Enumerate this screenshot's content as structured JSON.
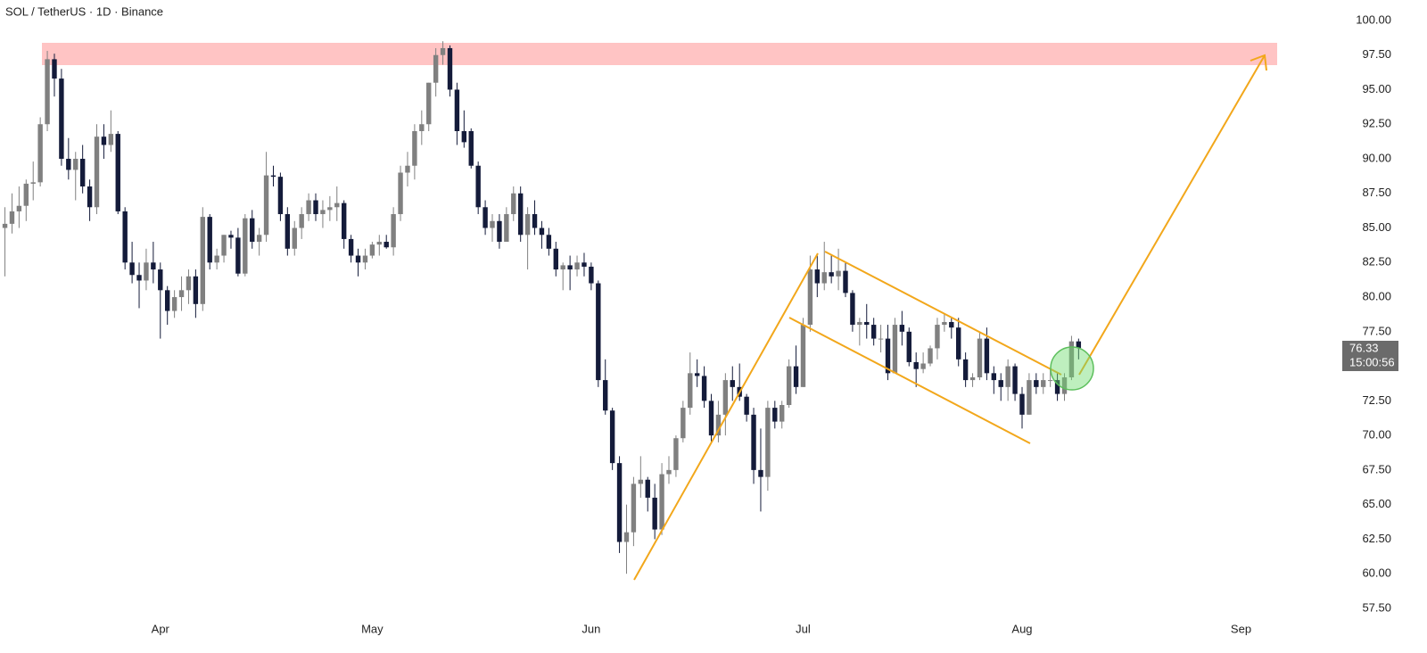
{
  "chart_data": {
    "type": "candlestick",
    "title": "SOL / TetherUS · 1D · Binance",
    "up_color": "#808080",
    "down_color": "#141b3a",
    "xlim": [
      -0.7,
      188.7
    ],
    "ylim": [
      56.98,
      101.48
    ],
    "xticks": [
      {
        "value": 22,
        "label": "Apr"
      },
      {
        "value": 52,
        "label": "May"
      },
      {
        "value": 83,
        "label": "Jun"
      },
      {
        "value": 113,
        "label": "Jul"
      },
      {
        "value": 144,
        "label": "Aug"
      },
      {
        "value": 175,
        "label": "Sep"
      }
    ],
    "yticks": [
      {
        "value": 57.5,
        "label": "57.50"
      },
      {
        "value": 60,
        "label": "60.00"
      },
      {
        "value": 62.5,
        "label": "62.50"
      },
      {
        "value": 65,
        "label": "65.00"
      },
      {
        "value": 67.5,
        "label": "67.50"
      },
      {
        "value": 70,
        "label": "70.00"
      },
      {
        "value": 72.5,
        "label": "72.50"
      },
      {
        "value": 75,
        "label": "75.00"
      },
      {
        "value": 77.5,
        "label": "77.50"
      },
      {
        "value": 80,
        "label": "80.00"
      },
      {
        "value": 82.5,
        "label": "82.50"
      },
      {
        "value": 85,
        "label": "85.00"
      },
      {
        "value": 87.5,
        "label": "87.50"
      },
      {
        "value": 90,
        "label": "90.00"
      },
      {
        "value": 92.5,
        "label": "92.50"
      },
      {
        "value": 95,
        "label": "95.00"
      },
      {
        "value": 97.5,
        "label": "97.50"
      },
      {
        "value": 100,
        "label": "100.00"
      }
    ],
    "countdown": "15:00:56",
    "open": [
      85.0,
      85.3,
      86.2,
      86.6,
      88.2,
      88.3,
      92.5,
      97.2,
      95.8,
      90.0,
      89.2,
      90.0,
      88.0,
      86.5,
      91.6,
      91.0,
      91.8,
      86.2,
      82.5,
      81.6,
      81.2,
      82.5,
      82.0,
      80.5,
      79.0,
      80.0,
      80.5,
      81.5,
      79.5,
      85.8,
      82.5,
      83.0,
      84.5,
      84.3,
      81.7,
      85.7,
      84.0,
      84.5,
      88.8,
      88.7,
      86.0,
      83.5,
      85.0,
      86.0,
      87.0,
      86.0,
      86.3,
      86.5,
      86.8,
      84.2,
      83.0,
      82.5,
      83.0,
      83.8,
      84.0,
      83.6,
      86.0,
      89.0,
      89.5,
      92.0,
      92.5,
      95.5,
      97.5,
      98.0,
      95.0,
      92.0,
      92.0,
      89.5,
      86.5,
      85.0,
      85.5,
      84.0,
      86.0,
      87.5,
      84.5,
      86.0,
      85.0,
      84.5,
      83.5,
      82.0,
      82.3,
      82.0,
      82.5,
      82.2,
      81.0,
      74.0,
      71.8,
      68.0,
      62.3,
      63.0,
      66.5,
      66.8,
      65.5,
      63.2,
      67.2,
      67.5,
      69.8,
      72.0,
      74.5,
      74.3,
      72.5,
      70.0,
      71.5,
      74.0,
      73.5,
      72.8,
      71.5,
      67.5,
      67.0,
      72.0,
      71.0,
      72.2,
      75.0,
      73.5,
      78.0,
      82.0,
      81.0,
      81.8,
      81.5,
      81.9,
      80.3,
      78.0,
      78.2,
      78.0,
      77.0,
      77.0,
      74.5,
      78.0,
      77.5,
      75.3,
      74.8,
      75.2,
      76.3,
      78.0,
      78.2,
      77.8,
      75.5,
      74.0,
      74.2,
      77.0,
      74.5,
      74.0,
      73.5,
      75.0,
      73.0,
      71.5,
      74.0,
      73.5,
      74.0,
      74.0,
      73.0,
      74.2,
      76.8
    ],
    "high": [
      86.5,
      87.5,
      88.0,
      88.5,
      89.8,
      93.0,
      97.8,
      97.6,
      96.5,
      91.5,
      90.5,
      91.0,
      88.5,
      92.5,
      92.5,
      93.5,
      92.0,
      86.5,
      84.0,
      82.5,
      83.5,
      84.0,
      82.5,
      80.8,
      80.5,
      81.5,
      82.0,
      82.0,
      86.5,
      86.0,
      83.5,
      84.5,
      84.8,
      85.0,
      86.0,
      86.3,
      85.0,
      90.5,
      89.5,
      89.0,
      86.5,
      85.5,
      86.5,
      87.5,
      87.5,
      87.0,
      87.3,
      88.0,
      87.0,
      84.5,
      83.5,
      83.5,
      84.0,
      84.5,
      84.5,
      86.5,
      89.5,
      90.5,
      92.5,
      93.5,
      95.5,
      98.0,
      98.5,
      98.2,
      95.5,
      93.5,
      92.2,
      89.8,
      87.0,
      86.0,
      86.0,
      86.5,
      88.0,
      88.0,
      86.5,
      87.0,
      85.5,
      85.0,
      84.0,
      82.5,
      83.0,
      83.0,
      83.2,
      82.5,
      81.2,
      75.5,
      72.0,
      68.5,
      65.0,
      67.0,
      68.5,
      67.0,
      66.5,
      68.0,
      68.5,
      70.0,
      72.5,
      76.0,
      75.5,
      75.0,
      73.0,
      72.5,
      74.5,
      75.0,
      75.2,
      73.0,
      72.0,
      70.5,
      72.5,
      72.5,
      72.5,
      75.5,
      76.5,
      78.5,
      83.0,
      83.0,
      84.0,
      83.0,
      83.5,
      82.5,
      80.5,
      78.5,
      79.5,
      78.5,
      78.0,
      78.0,
      78.5,
      79.0,
      77.8,
      76.0,
      76.0,
      76.5,
      78.5,
      78.8,
      78.5,
      78.5,
      76.0,
      74.5,
      77.5,
      77.8,
      75.0,
      74.5,
      75.5,
      75.2,
      73.5,
      74.5,
      74.5,
      74.5,
      74.8,
      74.5,
      74.5,
      77.2,
      77.0
    ],
    "low": [
      81.5,
      84.6,
      85.0,
      85.5,
      87.0,
      88.0,
      92.0,
      94.5,
      89.5,
      88.5,
      87.0,
      87.5,
      85.5,
      86.0,
      90.0,
      90.5,
      86.0,
      82.0,
      81.0,
      79.2,
      80.5,
      81.0,
      77.0,
      78.0,
      78.5,
      79.0,
      79.5,
      78.5,
      79.0,
      82.0,
      82.0,
      82.5,
      83.5,
      81.5,
      81.5,
      83.5,
      83.0,
      84.0,
      88.0,
      85.5,
      83.0,
      83.0,
      84.2,
      85.5,
      85.5,
      85.0,
      85.5,
      85.5,
      83.5,
      82.5,
      81.5,
      82.0,
      82.8,
      83.0,
      83.5,
      83.0,
      85.5,
      88.0,
      88.5,
      91.0,
      92.0,
      94.5,
      96.8,
      94.5,
      91.0,
      90.8,
      89.3,
      86.0,
      84.5,
      84.0,
      83.5,
      84.0,
      85.5,
      84.0,
      82.0,
      84.5,
      83.5,
      83.0,
      81.5,
      80.5,
      80.5,
      81.5,
      81.5,
      80.5,
      73.5,
      71.5,
      67.5,
      61.5,
      60.0,
      62.0,
      65.5,
      64.5,
      62.5,
      62.8,
      66.5,
      67.0,
      69.5,
      71.5,
      73.5,
      72.0,
      69.5,
      69.5,
      70.0,
      72.5,
      72.5,
      71.0,
      66.5,
      64.5,
      66.0,
      70.5,
      70.5,
      72.0,
      73.0,
      73.5,
      77.5,
      80.0,
      80.5,
      81.0,
      80.5,
      80.0,
      77.5,
      76.5,
      77.0,
      76.5,
      76.0,
      74.0,
      74.5,
      76.5,
      75.0,
      73.5,
      74.5,
      75.0,
      75.5,
      77.5,
      77.0,
      75.0,
      73.5,
      73.5,
      74.0,
      74.0,
      73.0,
      72.5,
      72.5,
      72.5,
      70.5,
      71.5,
      73.0,
      73.0,
      73.5,
      72.5,
      72.5,
      74.0,
      75.5
    ],
    "close": [
      85.3,
      86.2,
      86.6,
      88.2,
      88.3,
      92.5,
      97.2,
      95.8,
      90.0,
      89.2,
      90.0,
      88.0,
      86.5,
      91.6,
      91.0,
      91.8,
      86.2,
      82.5,
      81.6,
      81.2,
      82.5,
      82.0,
      80.5,
      79.0,
      80.0,
      80.5,
      81.5,
      79.5,
      85.8,
      82.5,
      83.0,
      84.5,
      84.3,
      81.7,
      85.7,
      84.0,
      84.5,
      88.8,
      88.7,
      86.0,
      83.5,
      85.0,
      86.0,
      87.0,
      86.0,
      86.3,
      86.5,
      86.8,
      84.2,
      83.0,
      82.5,
      83.0,
      83.8,
      84.0,
      83.6,
      86.0,
      89.0,
      89.5,
      92.0,
      92.5,
      95.5,
      97.5,
      98.0,
      95.0,
      92.0,
      91.2,
      89.5,
      86.5,
      85.0,
      85.5,
      84.0,
      86.0,
      87.5,
      84.5,
      86.0,
      85.0,
      84.5,
      83.5,
      82.0,
      82.3,
      82.0,
      82.5,
      82.2,
      81.0,
      74.0,
      71.8,
      68.0,
      62.3,
      63.0,
      66.5,
      66.8,
      65.5,
      63.2,
      67.2,
      67.5,
      69.8,
      72.0,
      74.5,
      74.3,
      72.5,
      70.0,
      71.5,
      74.0,
      73.5,
      72.8,
      71.5,
      67.5,
      67.0,
      72.0,
      71.0,
      72.2,
      75.0,
      73.5,
      78.0,
      82.0,
      81.0,
      81.8,
      81.5,
      81.9,
      80.3,
      78.0,
      78.2,
      78.0,
      77.0,
      77.0,
      74.5,
      78.0,
      77.5,
      75.3,
      74.8,
      75.2,
      76.3,
      78.0,
      78.2,
      77.8,
      75.5,
      74.0,
      74.2,
      77.0,
      74.5,
      74.0,
      73.5,
      75.0,
      73.0,
      71.5,
      74.0,
      73.5,
      74.0,
      74.0,
      73.0,
      74.2,
      76.8,
      76.33
    ]
  }
}
